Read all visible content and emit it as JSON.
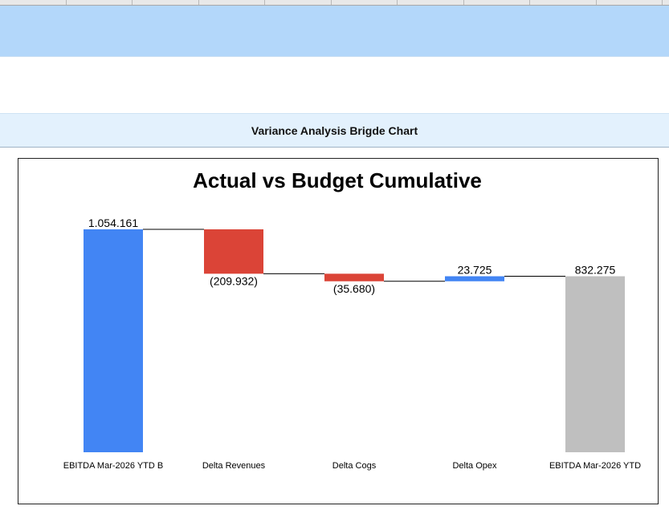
{
  "sheet": {
    "band_title": "Variance Analysis Brigde Chart"
  },
  "colors": {
    "increase": "#4285f4",
    "decrease": "#db4437",
    "total": "#bfbfbf",
    "band_blue": "#b3d7fa",
    "title_band": "#e3f1fd"
  },
  "chart_data": {
    "type": "bar",
    "subtype": "waterfall",
    "title": "Actual vs Budget Cumulative",
    "categories": [
      "EBITDA Mar-2026 YTD B",
      "Delta Revenues",
      "Delta Cogs",
      "Delta Opex",
      "EBITDA Mar-2026 YTD"
    ],
    "values": [
      1054161,
      -209932,
      -35680,
      23725,
      832275
    ],
    "kinds": [
      "total",
      "delta",
      "delta",
      "delta",
      "total"
    ],
    "data_labels": [
      "1.054.161",
      "(209.932)",
      "(35.680)",
      "23.725",
      "832.275"
    ],
    "ylim": [
      0,
      1054161
    ],
    "grid": false,
    "legend": "none",
    "connector_lines": true
  }
}
